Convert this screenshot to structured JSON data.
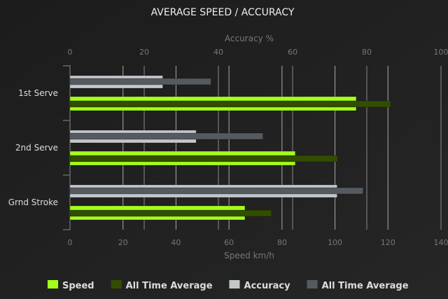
{
  "chart_data": {
    "type": "bar",
    "orientation": "horizontal",
    "title": "AVERAGE SPEED / ACCURACY",
    "categories": [
      "1st Serve",
      "2nd Serve",
      "Grnd Stroke"
    ],
    "x_bottom": {
      "label": "Speed km/h",
      "range": [
        0,
        140
      ],
      "ticks": [
        0,
        20,
        40,
        60,
        80,
        100,
        120,
        140
      ]
    },
    "x_top": {
      "label": "Accuracy %",
      "range": [
        0,
        100
      ],
      "ticks": [
        0,
        20,
        40,
        60,
        80,
        100
      ]
    },
    "grid": true,
    "legend_position": "bottom",
    "series": [
      {
        "name": "Speed",
        "axis": "bottom",
        "color": "#a4ff1c",
        "values": [
          108,
          85,
          66
        ]
      },
      {
        "name": "All Time Average",
        "axis": "bottom",
        "color": "#334d00",
        "values": [
          121,
          101,
          76
        ]
      },
      {
        "name": "Accuracy",
        "axis": "top",
        "color": "#c4c7c9",
        "values": [
          25,
          34,
          72
        ]
      },
      {
        "name": "All Time Average",
        "axis": "top",
        "color": "#555a61",
        "values": [
          38,
          52,
          79
        ]
      }
    ]
  }
}
